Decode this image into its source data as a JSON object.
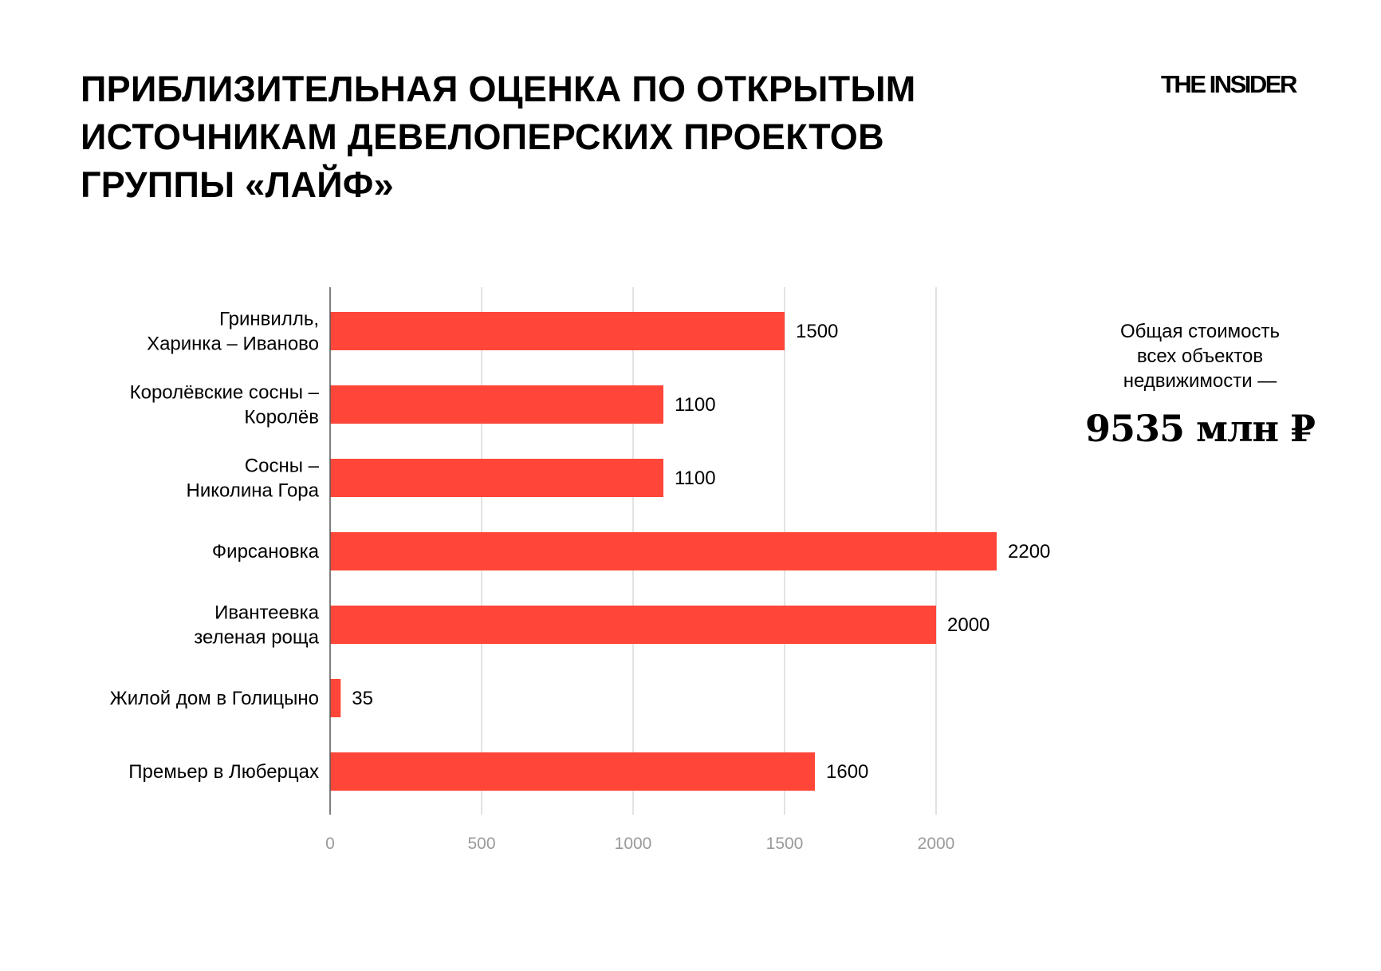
{
  "header": {
    "title_lines": [
      "ПРИБЛИЗИТЕЛЬНАЯ ОЦЕНКА ПО ОТКРЫТЫМ",
      "ИСТОЧНИКАМ ДЕВЕЛОПЕРСКИХ ПРОЕКТОВ",
      "ГРУППЫ «ЛАЙФ»"
    ],
    "logo": "THE INSIDER"
  },
  "summary": {
    "lines": [
      "Общая стоимость",
      "всех объектов",
      "недвижимости —"
    ],
    "total": "9535 млн ₽"
  },
  "chart_data": {
    "type": "bar",
    "orientation": "horizontal",
    "title": "ПРИБЛИЗИТЕЛЬНАЯ ОЦЕНКА ПО ОТКРЫТЫМ ИСТОЧНИКАМ ДЕВЕЛОПЕРСКИХ ПРОЕКТОВ ГРУППЫ «ЛАЙФ»",
    "categories": [
      [
        "Гринвилль,",
        "Харинка – Иваново"
      ],
      [
        "Королёвские сосны –",
        "Королёв"
      ],
      [
        "Сосны –",
        "Николина Гора"
      ],
      [
        "Фирсановка"
      ],
      [
        "Ивантеевка",
        "зеленая роща"
      ],
      [
        "Жилой дом в Голицыно"
      ],
      [
        "Премьер в Люберцах"
      ]
    ],
    "values": [
      1500,
      1100,
      1100,
      2200,
      2000,
      35,
      1600
    ],
    "data_labels": [
      "1500",
      "1100",
      "1100",
      "2200",
      "2000",
      "35",
      "1600"
    ],
    "xticks": [
      "0",
      "500",
      "1000",
      "1500",
      "2000"
    ],
    "xtick_values": [
      0,
      500,
      1000,
      1500,
      2000
    ],
    "xlim": [
      0,
      2500
    ],
    "xlabel": "",
    "ylabel": "",
    "grid": "vertical",
    "bar_color": "#ff4638",
    "grid_color": "#d9d9d9",
    "tick_color": "#9a9a9a"
  }
}
